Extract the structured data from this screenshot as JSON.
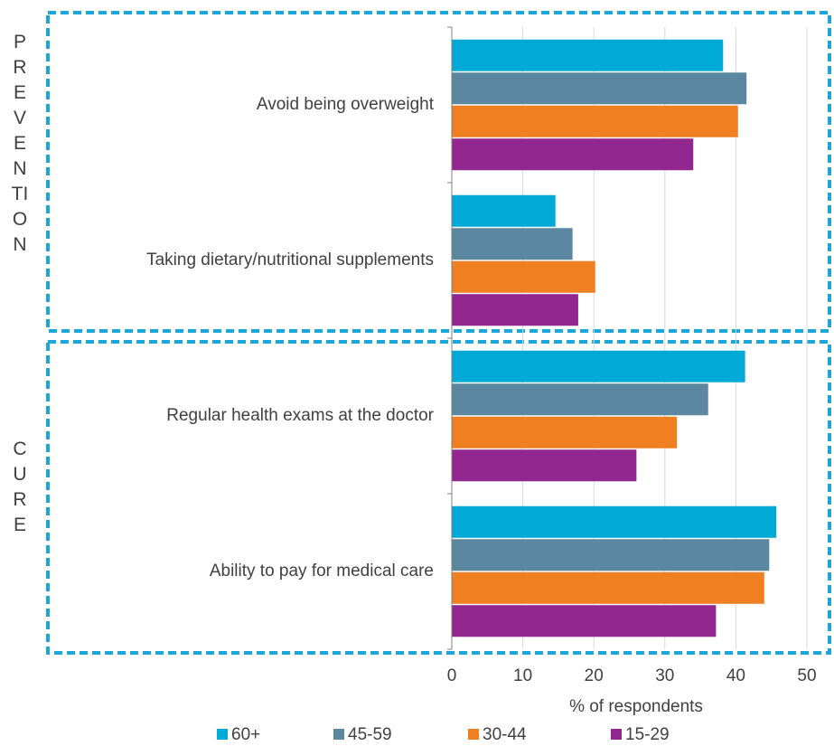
{
  "chart_data": {
    "type": "bar",
    "orientation": "horizontal",
    "categories": [
      "Avoid being overweight",
      "Taking dietary/nutritional supplements",
      "Regular health exams at the doctor",
      "Ability to pay for medical care"
    ],
    "groups": [
      "PREVENTION",
      "CURE"
    ],
    "series": [
      {
        "name": "60+",
        "color": "#00a9d6",
        "values": [
          38.2,
          14.6,
          41.3,
          45.7
        ]
      },
      {
        "name": "45-59",
        "color": "#5b88a0",
        "values": [
          41.5,
          17,
          36.1,
          44.7
        ]
      },
      {
        "name": "30-44",
        "color": "#f07f22",
        "values": [
          40.3,
          20.2,
          31.7,
          44
        ]
      },
      {
        "name": "15-29",
        "color": "#92278f",
        "values": [
          34,
          17.8,
          26,
          37.2
        ]
      }
    ],
    "xlabel": "% of respondents",
    "xlim": [
      0,
      50
    ],
    "xticks": [
      0,
      10,
      20,
      30,
      40,
      50
    ],
    "grid": true,
    "legend": "bottom"
  }
}
